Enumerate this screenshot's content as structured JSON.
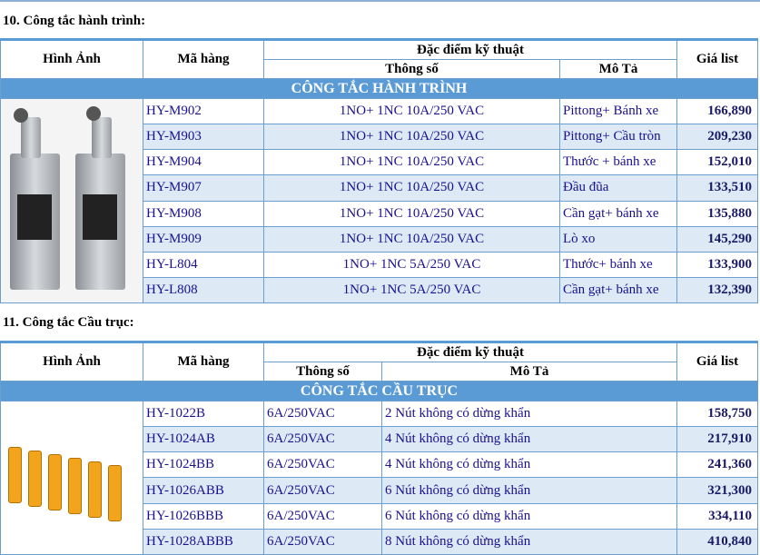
{
  "section1": {
    "title": "10. Công tắc hành trình:",
    "headers": {
      "image": "Hình Ảnh",
      "code": "Mã hàng",
      "spec_group": "Đặc điểm kỹ thuật",
      "spec": "Thông số",
      "desc": "Mô Tả",
      "price": "Giá list"
    },
    "band": "CÔNG TẮC HÀNH TRÌNH",
    "rows": [
      {
        "code": "HY-M902",
        "spec": "1NO+ 1NC 10A/250 VAC",
        "desc": "Pittong+ Bánh xe",
        "price": "166,890"
      },
      {
        "code": "HY-M903",
        "spec": "1NO+ 1NC 10A/250 VAC",
        "desc": "Pittong+ Cầu tròn",
        "price": "209,230"
      },
      {
        "code": "HY-M904",
        "spec": "1NO+ 1NC 10A/250 VAC",
        "desc": "Thước + bánh xe",
        "price": "152,010"
      },
      {
        "code": "HY-M907",
        "spec": "1NO+ 1NC 10A/250 VAC",
        "desc": "Đầu đũa",
        "price": "133,510"
      },
      {
        "code": "HY-M908",
        "spec": "1NO+ 1NC 10A/250 VAC",
        "desc": "Cần gạt+ bánh xe",
        "price": "135,880"
      },
      {
        "code": "HY-M909",
        "spec": "1NO+ 1NC 10A/250 VAC",
        "desc": "Lò xo",
        "price": "145,290"
      },
      {
        "code": "HY-L804",
        "spec": "1NO+ 1NC 5A/250 VAC",
        "desc": "Thước+ bánh xe",
        "price": "133,900"
      },
      {
        "code": "HY-L808",
        "spec": "1NO+ 1NC 5A/250 VAC",
        "desc": "Cần gạt+ bánh xe",
        "price": "132,390"
      }
    ]
  },
  "section2": {
    "title": "11. Công tắc Cầu trục:",
    "headers": {
      "image": "Hình Ảnh",
      "code": "Mã hàng",
      "spec_group": "Đặc điểm kỹ thuật",
      "spec": "Thông số",
      "desc": "Mô Tả",
      "price": "Giá list"
    },
    "band": "CÔNG TẮC CẦU TRỤC",
    "rows": [
      {
        "code": "HY-1022B",
        "spec": "6A/250VAC",
        "desc": "2 Nút không có dừng khẩn",
        "price": "158,750"
      },
      {
        "code": "HY-1024AB",
        "spec": "6A/250VAC",
        "desc": "4 Nút không có dừng khẩn",
        "price": "217,910"
      },
      {
        "code": "HY-1024BB",
        "spec": "6A/250VAC",
        "desc": "4 Nút không có dừng khẩn",
        "price": "241,360"
      },
      {
        "code": "HY-1026ABB",
        "spec": "6A/250VAC",
        "desc": "6 Nút không có dừng khẩn",
        "price": "321,300"
      },
      {
        "code": "HY-1026BBB",
        "spec": "6A/250VAC",
        "desc": "6 Nút không có dừng khẩn",
        "price": "334,110"
      },
      {
        "code": "HY-1028ABBB",
        "spec": "6A/250VAC",
        "desc": "8 Nút không có dừng khẩn",
        "price": "410,840"
      }
    ]
  },
  "colors": {
    "band": "#5b9bd5",
    "alt_row": "#dde9f5",
    "text": "#1a1090"
  }
}
